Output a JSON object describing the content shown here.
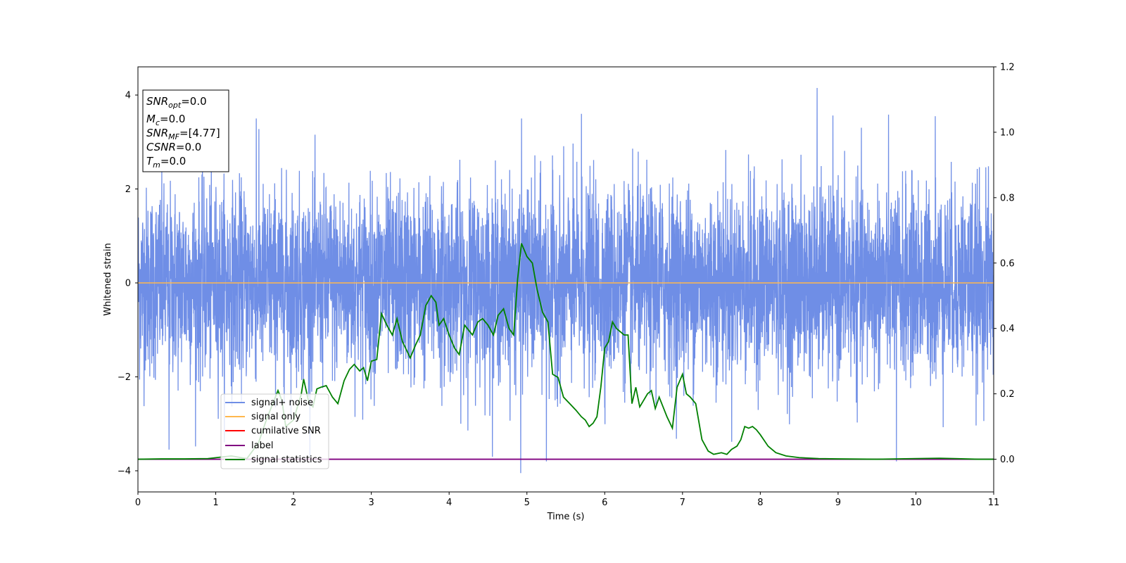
{
  "chart_data": {
    "type": "line",
    "xlabel": "Time (s)",
    "ylabel": "Whitened strain",
    "xlim": [
      0,
      11
    ],
    "ylim_left": [
      -4.45,
      4.6
    ],
    "ylim_right": [
      -0.1,
      1.2
    ],
    "x_ticks": [
      "0",
      "1",
      "2",
      "3",
      "4",
      "5",
      "6",
      "7",
      "8",
      "9",
      "10",
      "11"
    ],
    "y_ticks_left": [
      "−4",
      "−2",
      "0",
      "2",
      "4"
    ],
    "y_ticks_right": [
      "0.0",
      "0.2",
      "0.4",
      "0.6",
      "0.8",
      "1.0",
      "1.2"
    ],
    "grid": false,
    "legend_position": "lower-left",
    "legend": [
      {
        "label": "signal+ noise",
        "color": "#6f8ee6"
      },
      {
        "label": "signal only",
        "color": "#ffb74d"
      },
      {
        "label": "cumilative SNR",
        "color": "#ff0000"
      },
      {
        "label": "label",
        "color": "#800080"
      },
      {
        "label": "signal statistics",
        "color": "#008000"
      }
    ],
    "info_box": {
      "snr_opt": {
        "name": "SNR",
        "sub": "opt",
        "value": "=0.0"
      },
      "mc": {
        "name": "M",
        "sub": "c",
        "value": "=0.0"
      },
      "snr_mf": {
        "name": "SNR",
        "sub": "MF",
        "value": "=[4.77]"
      },
      "csnr": {
        "name": "CSNR",
        "value": "=0.0"
      },
      "tm": {
        "name": "T",
        "sub": "m",
        "value": "=0.0"
      }
    },
    "series": [
      {
        "name": "signal+ noise",
        "axis": "left",
        "color": "#6f8ee6",
        "description_range": [
          -4.0,
          4.2
        ],
        "peaks": [
          {
            "x": 8.73,
            "y": 4.15
          },
          {
            "x": 4.93,
            "y": 3.5
          },
          {
            "x": 5.7,
            "y": 3.6
          },
          {
            "x": 9.75,
            "y": -3.8
          },
          {
            "x": 4.92,
            "y": -4.05
          },
          {
            "x": 5.25,
            "y": -3.8
          },
          {
            "x": 0.4,
            "y": -3.55
          },
          {
            "x": 10.25,
            "y": 3.55
          },
          {
            "x": 1.52,
            "y": 3.5
          }
        ]
      },
      {
        "name": "signal only",
        "axis": "left",
        "color": "#ffb74d",
        "x": [
          0,
          11
        ],
        "y": [
          0,
          0
        ]
      },
      {
        "name": "label",
        "axis": "right",
        "color": "#800080",
        "x": [
          0,
          11
        ],
        "y": [
          0,
          0
        ]
      },
      {
        "name": "signal statistics",
        "axis": "right",
        "color": "#008000",
        "x": [
          0.0,
          0.3,
          0.6,
          0.9,
          1.05,
          1.2,
          1.4,
          1.55,
          1.65,
          1.75,
          1.8,
          1.85,
          1.9,
          2.0,
          2.1,
          2.13,
          2.2,
          2.25,
          2.3,
          2.35,
          2.42,
          2.5,
          2.57,
          2.65,
          2.72,
          2.78,
          2.85,
          2.9,
          2.95,
          3.0,
          3.07,
          3.13,
          3.2,
          3.27,
          3.33,
          3.4,
          3.5,
          3.57,
          3.63,
          3.7,
          3.77,
          3.83,
          3.87,
          3.93,
          4.0,
          4.07,
          4.13,
          4.2,
          4.3,
          4.37,
          4.43,
          4.5,
          4.57,
          4.63,
          4.7,
          4.77,
          4.83,
          4.88,
          4.93,
          5.0,
          5.07,
          5.13,
          5.2,
          5.27,
          5.33,
          5.4,
          5.47,
          5.55,
          5.63,
          5.7,
          5.75,
          5.8,
          5.85,
          5.9,
          5.95,
          6.0,
          6.05,
          6.1,
          6.15,
          6.2,
          6.25,
          6.3,
          6.35,
          6.4,
          6.45,
          6.5,
          6.55,
          6.6,
          6.65,
          6.7,
          6.75,
          6.8,
          6.87,
          6.93,
          7.0,
          7.05,
          7.1,
          7.17,
          7.25,
          7.33,
          7.4,
          7.5,
          7.57,
          7.63,
          7.7,
          7.75,
          7.8,
          7.85,
          7.9,
          7.95,
          8.0,
          8.1,
          8.2,
          8.33,
          8.5,
          8.75,
          9.0,
          9.5,
          10.0,
          10.3,
          10.5,
          10.8,
          11.0
        ],
        "y": [
          0.0,
          0.001,
          0.001,
          0.002,
          0.006,
          0.01,
          0.002,
          0.05,
          0.12,
          0.18,
          0.21,
          0.18,
          0.1,
          0.12,
          0.2,
          0.245,
          0.17,
          0.16,
          0.215,
          0.22,
          0.225,
          0.19,
          0.17,
          0.24,
          0.275,
          0.29,
          0.27,
          0.28,
          0.24,
          0.3,
          0.305,
          0.445,
          0.41,
          0.38,
          0.43,
          0.36,
          0.31,
          0.35,
          0.38,
          0.47,
          0.5,
          0.48,
          0.41,
          0.43,
          0.38,
          0.34,
          0.32,
          0.41,
          0.38,
          0.42,
          0.43,
          0.41,
          0.38,
          0.44,
          0.46,
          0.4,
          0.38,
          0.55,
          0.66,
          0.62,
          0.6,
          0.52,
          0.45,
          0.42,
          0.26,
          0.25,
          0.19,
          0.17,
          0.15,
          0.13,
          0.12,
          0.1,
          0.11,
          0.13,
          0.22,
          0.34,
          0.36,
          0.42,
          0.4,
          0.39,
          0.38,
          0.38,
          0.17,
          0.22,
          0.16,
          0.18,
          0.2,
          0.21,
          0.155,
          0.19,
          0.16,
          0.13,
          0.095,
          0.22,
          0.26,
          0.2,
          0.19,
          0.17,
          0.06,
          0.025,
          0.015,
          0.02,
          0.015,
          0.03,
          0.04,
          0.06,
          0.1,
          0.095,
          0.1,
          0.09,
          0.075,
          0.04,
          0.02,
          0.01,
          0.005,
          0.002,
          0.001,
          0.0,
          0.002,
          0.003,
          0.002,
          0.0,
          0.0
        ]
      }
    ]
  }
}
